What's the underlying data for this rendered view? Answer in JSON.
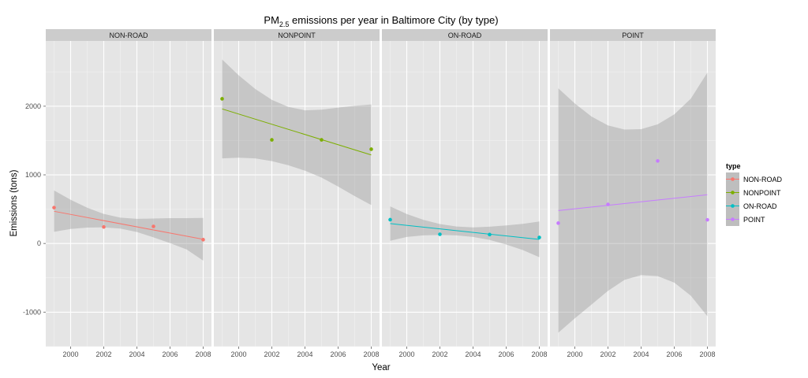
{
  "chart_data": {
    "type": "scatter",
    "title": {
      "prefix": "PM",
      "subscript": "2.5",
      "suffix": " emissions per year in Baltimore City (by type)"
    },
    "xlabel": "Year",
    "ylabel": "Emissions (tons)",
    "xlim": [
      1998.5,
      2008.5
    ],
    "ylim": [
      -1500,
      2950
    ],
    "x_ticks": [
      2000,
      2002,
      2004,
      2006,
      2008
    ],
    "x_tick_labels": [
      "2000",
      "2002",
      "2004",
      "2006",
      "2008"
    ],
    "y_ticks": [
      -1000,
      0,
      1000,
      2000
    ],
    "y_tick_labels": [
      "-1000",
      "0",
      "1000",
      "2000"
    ],
    "grid": true,
    "legend_title": "type",
    "legend_position": "right",
    "facets": [
      {
        "label": "NON-ROAD",
        "color": "#F8766D",
        "x": [
          1999,
          2002,
          2005,
          2008
        ],
        "y": [
          522.94,
          240.85,
          248.93,
          55.82
        ],
        "fit": {
          "x": [
            1999,
            2008
          ],
          "y": [
            469,
            62
          ]
        },
        "band": {
          "x": [
            1999,
            2000,
            2001,
            2002,
            2003,
            2004,
            2005,
            2006,
            2007,
            2008
          ],
          "upper": [
            772,
            637,
            521,
            431,
            376,
            360,
            364,
            369,
            370,
            372
          ],
          "lower": [
            170,
            212,
            232,
            235,
            217,
            167,
            90,
            5,
            -86,
            -250
          ]
        }
      },
      {
        "label": "NONPOINT",
        "color": "#7CAE00",
        "x": [
          1999,
          2002,
          2005,
          2008
        ],
        "y": [
          2107.63,
          1509.5,
          1509.5,
          1373.21
        ],
        "fit": {
          "x": [
            1999,
            2008
          ],
          "y": [
            1960,
            1290
          ]
        },
        "band": {
          "x": [
            1999,
            2000,
            2001,
            2002,
            2003,
            2004,
            2005,
            2006,
            2007,
            2008
          ],
          "upper": [
            2680,
            2450,
            2250,
            2092,
            1990,
            1940,
            1950,
            1980,
            2005,
            2025
          ],
          "lower": [
            1240,
            1250,
            1240,
            1200,
            1140,
            1060,
            960,
            830,
            690,
            560
          ]
        }
      },
      {
        "label": "ON-ROAD",
        "color": "#00BFC4",
        "x": [
          1999,
          2002,
          2005,
          2008
        ],
        "y": [
          346.82,
          134.31,
          130.43,
          88.28
        ],
        "fit": {
          "x": [
            1999,
            2008
          ],
          "y": [
            290,
            60
          ]
        },
        "band": {
          "x": [
            1999,
            2000,
            2001,
            2002,
            2003,
            2004,
            2005,
            2006,
            2007,
            2008
          ],
          "upper": [
            540,
            430,
            345,
            283,
            247,
            235,
            245,
            264,
            287,
            320
          ],
          "lower": [
            40,
            95,
            118,
            125,
            118,
            95,
            52,
            -15,
            -95,
            -200
          ]
        }
      },
      {
        "label": "POINT",
        "color": "#C77CFF",
        "x": [
          1999,
          2002,
          2005,
          2008
        ],
        "y": [
          296.8,
          569.26,
          1202.49,
          344.98
        ],
        "fit": {
          "x": [
            1999,
            2008
          ],
          "y": [
            480,
            710
          ]
        },
        "band": {
          "x": [
            1999,
            2000,
            2001,
            2002,
            2003,
            2004,
            2005,
            2006,
            2007,
            2008
          ],
          "upper": [
            2260,
            2040,
            1850,
            1720,
            1660,
            1665,
            1735,
            1880,
            2110,
            2490
          ],
          "lower": [
            -1300,
            -1090,
            -890,
            -690,
            -530,
            -460,
            -475,
            -570,
            -760,
            -1060
          ]
        }
      }
    ]
  }
}
